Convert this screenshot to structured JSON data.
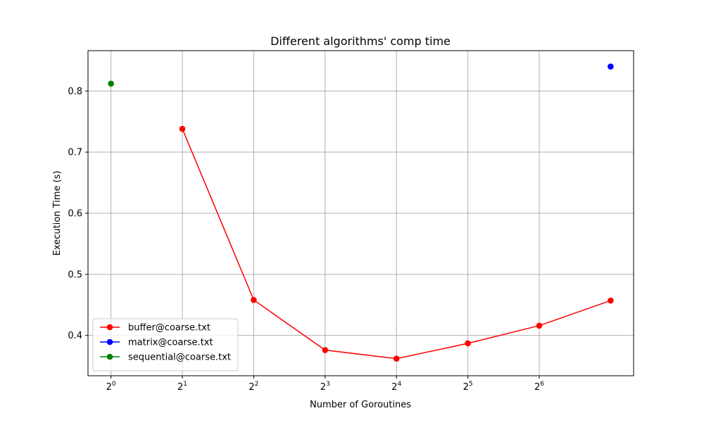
{
  "chart_data": {
    "type": "line",
    "title": "Different algorithms' comp time",
    "xlabel": "Number of Goroutines",
    "ylabel": "Execution Time (s)",
    "x_scale": "log2",
    "x_ticks": [
      {
        "base": "2",
        "exp": "0",
        "value": 1
      },
      {
        "base": "2",
        "exp": "1",
        "value": 2
      },
      {
        "base": "2",
        "exp": "2",
        "value": 4
      },
      {
        "base": "2",
        "exp": "3",
        "value": 8
      },
      {
        "base": "2",
        "exp": "4",
        "value": 16
      },
      {
        "base": "2",
        "exp": "5",
        "value": 32
      },
      {
        "base": "2",
        "exp": "6",
        "value": 64
      }
    ],
    "y_ticks": [
      {
        "label": "0.4",
        "value": 0.4
      },
      {
        "label": "0.5",
        "value": 0.5
      },
      {
        "label": "0.6",
        "value": 0.6
      },
      {
        "label": "0.7",
        "value": 0.7
      },
      {
        "label": "0.8",
        "value": 0.8
      }
    ],
    "xlim": [
      0.8,
      160
    ],
    "ylim": [
      0.334,
      0.866
    ],
    "grid": true,
    "legend_position": "lower-left",
    "series": [
      {
        "name": "buffer@coarse.txt",
        "color": "#ff0000",
        "points": [
          [
            2,
            0.738
          ],
          [
            4,
            0.458
          ],
          [
            8,
            0.376
          ],
          [
            16,
            0.362
          ],
          [
            32,
            0.387
          ],
          [
            64,
            0.416
          ],
          [
            128,
            0.457
          ]
        ]
      },
      {
        "name": "matrix@coarse.txt",
        "color": "#0000ff",
        "points": [
          [
            128,
            0.84
          ]
        ]
      },
      {
        "name": "sequential@coarse.txt",
        "color": "#008000",
        "points": [
          [
            1,
            0.812
          ]
        ]
      }
    ]
  }
}
